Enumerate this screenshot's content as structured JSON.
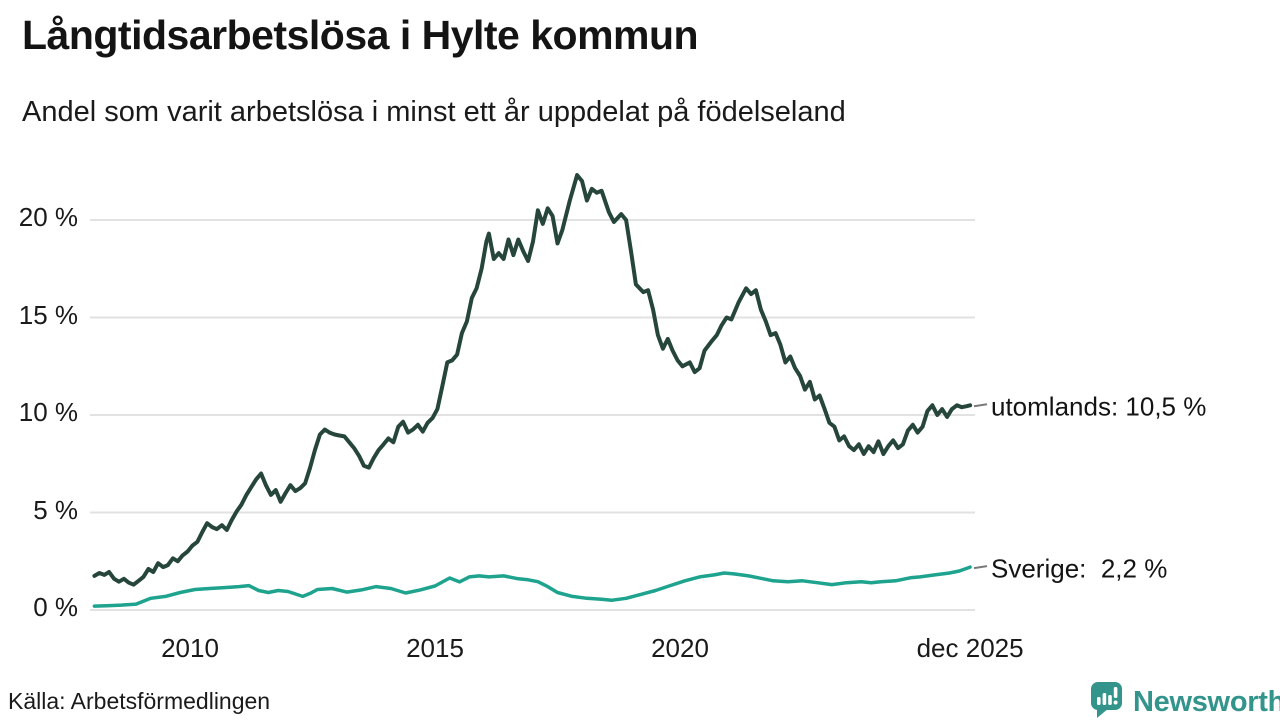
{
  "header": {
    "title": "Långtidsarbetslösa i Hylte kommun",
    "subtitle": "Andel som varit arbetslösa i minst ett år uppdelat på födelseland"
  },
  "footer": {
    "source": "Källa: Arbetsförmedlingen",
    "brand": "Newsworthy"
  },
  "colors": {
    "series_utomlands": "#26463c",
    "series_sverige": "#1ea38e",
    "grid": "#e2e2e2",
    "text": "#1a1a1a",
    "brand_teal": "#33948b",
    "leader_dash": "#7a7a7a",
    "icon_bars_white": "#ffffff"
  },
  "chart_data": {
    "type": "line",
    "title": "Långtidsarbetslösa i Hylte kommun",
    "subtitle": "Andel som varit arbetslösa i minst ett år uppdelat på födelseland",
    "grid": true,
    "legend_position": "right-end-labels",
    "x_range": [
      2008.05,
      2025.92
    ],
    "y_axis": {
      "unit": "%",
      "tick_labels": [
        "0 %",
        "5 %",
        "10 %",
        "15 %",
        "20 %"
      ],
      "tick_values": [
        0,
        5,
        10,
        15,
        20
      ],
      "ylim": [
        0,
        22.8
      ]
    },
    "x_axis": {
      "ticks": [
        {
          "label": "2010",
          "year": 2010
        },
        {
          "label": "2015",
          "year": 2015
        },
        {
          "label": "2020",
          "year": 2020
        },
        {
          "label": "dec 2025",
          "year": 2025.92
        }
      ]
    },
    "series": [
      {
        "name": "utomlands",
        "label": "utomlands: 10,5 %",
        "end_value": 10.5,
        "color_key": "series_utomlands",
        "stroke_width": 4,
        "points": [
          [
            2008.05,
            1.75
          ],
          [
            2008.15,
            1.9
          ],
          [
            2008.25,
            1.8
          ],
          [
            2008.35,
            1.95
          ],
          [
            2008.45,
            1.6
          ],
          [
            2008.55,
            1.45
          ],
          [
            2008.65,
            1.6
          ],
          [
            2008.75,
            1.4
          ],
          [
            2008.85,
            1.3
          ],
          [
            2008.95,
            1.5
          ],
          [
            2009.05,
            1.7
          ],
          [
            2009.15,
            2.1
          ],
          [
            2009.25,
            1.95
          ],
          [
            2009.35,
            2.4
          ],
          [
            2009.45,
            2.2
          ],
          [
            2009.55,
            2.3
          ],
          [
            2009.65,
            2.65
          ],
          [
            2009.75,
            2.5
          ],
          [
            2009.85,
            2.8
          ],
          [
            2009.95,
            3.0
          ],
          [
            2010.05,
            3.3
          ],
          [
            2010.15,
            3.5
          ],
          [
            2010.25,
            4.0
          ],
          [
            2010.35,
            4.45
          ],
          [
            2010.45,
            4.25
          ],
          [
            2010.55,
            4.15
          ],
          [
            2010.65,
            4.35
          ],
          [
            2010.75,
            4.1
          ],
          [
            2010.85,
            4.6
          ],
          [
            2010.95,
            5.05
          ],
          [
            2011.05,
            5.4
          ],
          [
            2011.15,
            5.9
          ],
          [
            2011.25,
            6.3
          ],
          [
            2011.35,
            6.7
          ],
          [
            2011.45,
            7.0
          ],
          [
            2011.55,
            6.4
          ],
          [
            2011.65,
            5.9
          ],
          [
            2011.75,
            6.15
          ],
          [
            2011.85,
            5.55
          ],
          [
            2011.95,
            6.0
          ],
          [
            2012.05,
            6.4
          ],
          [
            2012.15,
            6.1
          ],
          [
            2012.25,
            6.25
          ],
          [
            2012.35,
            6.5
          ],
          [
            2012.45,
            7.3
          ],
          [
            2012.55,
            8.2
          ],
          [
            2012.65,
            9.0
          ],
          [
            2012.75,
            9.25
          ],
          [
            2012.85,
            9.1
          ],
          [
            2012.95,
            9.0
          ],
          [
            2013.05,
            8.95
          ],
          [
            2013.15,
            8.9
          ],
          [
            2013.25,
            8.6
          ],
          [
            2013.35,
            8.3
          ],
          [
            2013.45,
            7.9
          ],
          [
            2013.55,
            7.4
          ],
          [
            2013.65,
            7.3
          ],
          [
            2013.75,
            7.8
          ],
          [
            2013.85,
            8.2
          ],
          [
            2013.95,
            8.5
          ],
          [
            2014.05,
            8.8
          ],
          [
            2014.15,
            8.6
          ],
          [
            2014.25,
            9.4
          ],
          [
            2014.35,
            9.65
          ],
          [
            2014.45,
            9.1
          ],
          [
            2014.55,
            9.25
          ],
          [
            2014.65,
            9.5
          ],
          [
            2014.75,
            9.15
          ],
          [
            2014.85,
            9.6
          ],
          [
            2014.95,
            9.85
          ],
          [
            2015.05,
            10.3
          ],
          [
            2015.15,
            11.5
          ],
          [
            2015.25,
            12.7
          ],
          [
            2015.35,
            12.8
          ],
          [
            2015.45,
            13.1
          ],
          [
            2015.55,
            14.2
          ],
          [
            2015.65,
            14.8
          ],
          [
            2015.75,
            16.0
          ],
          [
            2015.85,
            16.5
          ],
          [
            2015.95,
            17.5
          ],
          [
            2016.05,
            18.9
          ],
          [
            2016.1,
            19.3
          ],
          [
            2016.2,
            18.0
          ],
          [
            2016.3,
            18.3
          ],
          [
            2016.4,
            18.0
          ],
          [
            2016.5,
            19.0
          ],
          [
            2016.6,
            18.2
          ],
          [
            2016.7,
            19.0
          ],
          [
            2016.8,
            18.4
          ],
          [
            2016.9,
            17.9
          ],
          [
            2017.0,
            18.9
          ],
          [
            2017.1,
            20.5
          ],
          [
            2017.2,
            19.8
          ],
          [
            2017.3,
            20.6
          ],
          [
            2017.4,
            20.2
          ],
          [
            2017.5,
            18.8
          ],
          [
            2017.6,
            19.5
          ],
          [
            2017.75,
            21.0
          ],
          [
            2017.9,
            22.3
          ],
          [
            2018.0,
            22.0
          ],
          [
            2018.1,
            21.0
          ],
          [
            2018.2,
            21.6
          ],
          [
            2018.3,
            21.4
          ],
          [
            2018.4,
            21.5
          ],
          [
            2018.55,
            20.4
          ],
          [
            2018.65,
            19.9
          ],
          [
            2018.8,
            20.3
          ],
          [
            2018.9,
            20.0
          ],
          [
            2019.0,
            18.4
          ],
          [
            2019.1,
            16.7
          ],
          [
            2019.25,
            16.3
          ],
          [
            2019.35,
            16.4
          ],
          [
            2019.45,
            15.4
          ],
          [
            2019.55,
            14.1
          ],
          [
            2019.65,
            13.4
          ],
          [
            2019.75,
            13.9
          ],
          [
            2019.85,
            13.3
          ],
          [
            2019.95,
            12.8
          ],
          [
            2020.05,
            12.5
          ],
          [
            2020.2,
            12.7
          ],
          [
            2020.3,
            12.2
          ],
          [
            2020.4,
            12.4
          ],
          [
            2020.5,
            13.3
          ],
          [
            2020.65,
            13.8
          ],
          [
            2020.75,
            14.1
          ],
          [
            2020.85,
            14.6
          ],
          [
            2020.95,
            15.0
          ],
          [
            2021.05,
            14.9
          ],
          [
            2021.2,
            15.8
          ],
          [
            2021.35,
            16.5
          ],
          [
            2021.45,
            16.2
          ],
          [
            2021.55,
            16.4
          ],
          [
            2021.65,
            15.4
          ],
          [
            2021.75,
            14.8
          ],
          [
            2021.85,
            14.1
          ],
          [
            2021.95,
            14.2
          ],
          [
            2022.05,
            13.6
          ],
          [
            2022.15,
            12.7
          ],
          [
            2022.25,
            13.0
          ],
          [
            2022.35,
            12.4
          ],
          [
            2022.45,
            12.0
          ],
          [
            2022.55,
            11.3
          ],
          [
            2022.65,
            11.7
          ],
          [
            2022.75,
            10.8
          ],
          [
            2022.85,
            11.0
          ],
          [
            2022.95,
            10.3
          ],
          [
            2023.05,
            9.6
          ],
          [
            2023.15,
            9.4
          ],
          [
            2023.25,
            8.7
          ],
          [
            2023.35,
            8.9
          ],
          [
            2023.45,
            8.4
          ],
          [
            2023.55,
            8.2
          ],
          [
            2023.65,
            8.5
          ],
          [
            2023.75,
            8.0
          ],
          [
            2023.85,
            8.4
          ],
          [
            2023.95,
            8.1
          ],
          [
            2024.05,
            8.65
          ],
          [
            2024.15,
            8.0
          ],
          [
            2024.25,
            8.4
          ],
          [
            2024.35,
            8.7
          ],
          [
            2024.45,
            8.3
          ],
          [
            2024.55,
            8.5
          ],
          [
            2024.65,
            9.2
          ],
          [
            2024.75,
            9.5
          ],
          [
            2024.85,
            9.1
          ],
          [
            2024.95,
            9.4
          ],
          [
            2025.05,
            10.2
          ],
          [
            2025.15,
            10.5
          ],
          [
            2025.25,
            10.0
          ],
          [
            2025.35,
            10.3
          ],
          [
            2025.45,
            9.9
          ],
          [
            2025.55,
            10.3
          ],
          [
            2025.65,
            10.5
          ],
          [
            2025.75,
            10.4
          ],
          [
            2025.85,
            10.45
          ],
          [
            2025.92,
            10.5
          ]
        ]
      },
      {
        "name": "Sverige",
        "label": "Sverige:  2,2 %",
        "end_value": 2.2,
        "color_key": "series_sverige",
        "stroke_width": 3.5,
        "points": [
          [
            2008.05,
            0.2
          ],
          [
            2008.3,
            0.22
          ],
          [
            2008.6,
            0.25
          ],
          [
            2008.9,
            0.3
          ],
          [
            2009.2,
            0.6
          ],
          [
            2009.5,
            0.7
          ],
          [
            2009.8,
            0.9
          ],
          [
            2010.1,
            1.05
          ],
          [
            2010.4,
            1.1
          ],
          [
            2010.7,
            1.15
          ],
          [
            2011.0,
            1.2
          ],
          [
            2011.2,
            1.25
          ],
          [
            2011.4,
            1.0
          ],
          [
            2011.6,
            0.9
          ],
          [
            2011.8,
            1.0
          ],
          [
            2012.0,
            0.95
          ],
          [
            2012.3,
            0.7
          ],
          [
            2012.45,
            0.85
          ],
          [
            2012.6,
            1.05
          ],
          [
            2012.9,
            1.1
          ],
          [
            2013.2,
            0.92
          ],
          [
            2013.5,
            1.03
          ],
          [
            2013.8,
            1.2
          ],
          [
            2014.1,
            1.1
          ],
          [
            2014.4,
            0.87
          ],
          [
            2014.7,
            1.03
          ],
          [
            2015.0,
            1.23
          ],
          [
            2015.3,
            1.64
          ],
          [
            2015.5,
            1.44
          ],
          [
            2015.7,
            1.7
          ],
          [
            2015.9,
            1.75
          ],
          [
            2016.1,
            1.7
          ],
          [
            2016.4,
            1.75
          ],
          [
            2016.7,
            1.6
          ],
          [
            2016.9,
            1.55
          ],
          [
            2017.1,
            1.45
          ],
          [
            2017.3,
            1.2
          ],
          [
            2017.5,
            0.9
          ],
          [
            2017.8,
            0.7
          ],
          [
            2018.1,
            0.6
          ],
          [
            2018.4,
            0.55
          ],
          [
            2018.6,
            0.5
          ],
          [
            2018.9,
            0.6
          ],
          [
            2019.2,
            0.8
          ],
          [
            2019.5,
            1.0
          ],
          [
            2019.8,
            1.25
          ],
          [
            2020.1,
            1.5
          ],
          [
            2020.4,
            1.7
          ],
          [
            2020.7,
            1.8
          ],
          [
            2020.9,
            1.9
          ],
          [
            2021.1,
            1.85
          ],
          [
            2021.4,
            1.75
          ],
          [
            2021.7,
            1.6
          ],
          [
            2021.9,
            1.5
          ],
          [
            2022.2,
            1.45
          ],
          [
            2022.5,
            1.5
          ],
          [
            2022.8,
            1.4
          ],
          [
            2023.1,
            1.3
          ],
          [
            2023.4,
            1.4
          ],
          [
            2023.7,
            1.45
          ],
          [
            2023.9,
            1.4
          ],
          [
            2024.1,
            1.45
          ],
          [
            2024.4,
            1.5
          ],
          [
            2024.7,
            1.65
          ],
          [
            2024.9,
            1.7
          ],
          [
            2025.2,
            1.8
          ],
          [
            2025.5,
            1.9
          ],
          [
            2025.7,
            2.0
          ],
          [
            2025.92,
            2.2
          ]
        ]
      }
    ]
  }
}
